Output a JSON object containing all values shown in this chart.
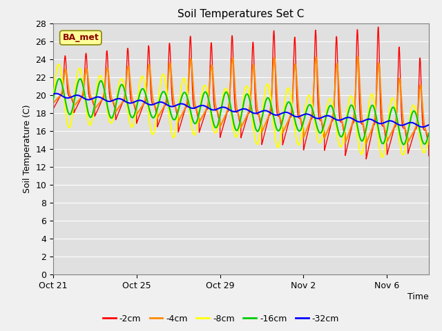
{
  "title": "Soil Temperatures Set C",
  "xlabel": "Time",
  "ylabel": "Soil Temperature (C)",
  "ylim": [
    0,
    28
  ],
  "yticks": [
    0,
    2,
    4,
    6,
    8,
    10,
    12,
    14,
    16,
    18,
    20,
    22,
    24,
    26,
    28
  ],
  "xtick_labels": [
    "Oct 21",
    "Oct 25",
    "Oct 29",
    "Nov 2",
    "Nov 6"
  ],
  "xtick_positions": [
    0,
    4,
    8,
    12,
    16
  ],
  "xlim": [
    0,
    18
  ],
  "colors": {
    "-2cm": "#ff0000",
    "-4cm": "#ff8800",
    "-8cm": "#ffff00",
    "-16cm": "#00cc00",
    "-32cm": "#0000ff"
  },
  "legend_labels": [
    "-2cm",
    "-4cm",
    "-8cm",
    "-16cm",
    "-32cm"
  ],
  "annotation_text": "BA_met",
  "annotation_color": "#8b0000",
  "annotation_bg": "#ffff99",
  "fig_bg": "#f0f0f0",
  "plot_bg": "#e0e0e0",
  "n_days": 18,
  "samples_per_day": 288
}
